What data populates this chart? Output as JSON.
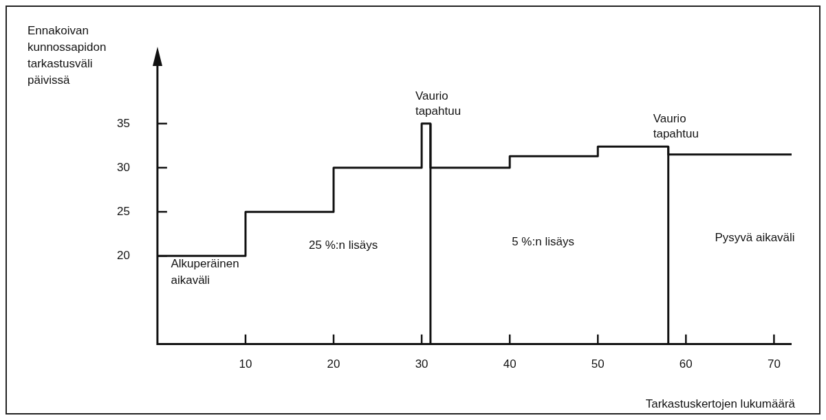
{
  "chart_data": {
    "type": "step",
    "xlabel": "Tarkastuskertojen lukumäärä",
    "ylabel": "Ennakoivan\nkunnossapidon\ntarkastusväli\npäivissä",
    "x": [
      0,
      10,
      20,
      30,
      31,
      40,
      50,
      58,
      72
    ],
    "series": [
      {
        "color": "#111111",
        "values": [
          20,
          25,
          30,
          35,
          30,
          31.3,
          32.4,
          31.5,
          31.5
        ]
      }
    ],
    "xlim": [
      0,
      72
    ],
    "xticks": [
      10,
      20,
      30,
      40,
      50,
      60,
      70
    ],
    "ylim": [
      10,
      42
    ],
    "yticks": [
      20,
      25,
      30,
      35
    ],
    "ref_lines": [
      {
        "axis": "x",
        "value": 31,
        "label": "Vaurio\ntapahtuu",
        "color": "#111111"
      },
      {
        "axis": "x",
        "value": 58,
        "label": "Vaurio\ntapahtuu",
        "color": "#111111"
      }
    ],
    "annotations": [
      "Alkuperäinen\naikaväli",
      "25 %:n lisäys",
      "5 %:n lisäys",
      "Pysyvä aikaväli"
    ],
    "legend": false
  }
}
